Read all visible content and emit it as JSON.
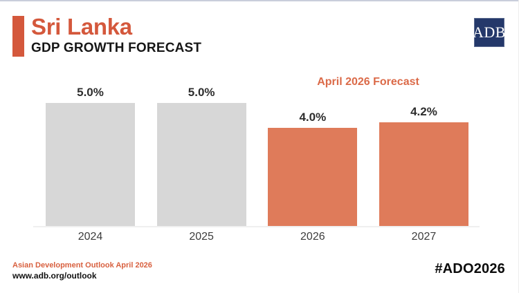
{
  "header": {
    "title": "Sri Lanka",
    "subtitle": "GDP GROWTH FORECAST"
  },
  "logo": {
    "text": "ADB",
    "background_color": "#24386A"
  },
  "chart_data": {
    "type": "bar",
    "title": "Sri Lanka GDP Growth Forecast",
    "categories": [
      "2024",
      "2025",
      "2026",
      "2027"
    ],
    "values": [
      5.0,
      5.0,
      4.0,
      4.2
    ],
    "value_labels": [
      "5.0%",
      "5.0%",
      "4.0%",
      "4.2%"
    ],
    "unit": "%",
    "ylim": [
      0,
      5.6
    ],
    "grid": "off",
    "annotation": "April 2026 Forecast",
    "forecast_start_index": 2,
    "series_colors": {
      "actual": "#D7D7D7",
      "forecast": "#DF7B5A"
    }
  },
  "footer": {
    "source": "Asian Development Outlook April 2026",
    "url": "www.adb.org/outlook",
    "hashtag": "#ADO2026"
  },
  "colors": {
    "accent_orange": "#D4583C",
    "annotation_orange": "#DB6A48",
    "bar_gray": "#D7D7D7",
    "bar_orange": "#DF7B5A",
    "logo_navy": "#24386A",
    "axis_gray": "#efefef",
    "text_dark": "#161616"
  }
}
